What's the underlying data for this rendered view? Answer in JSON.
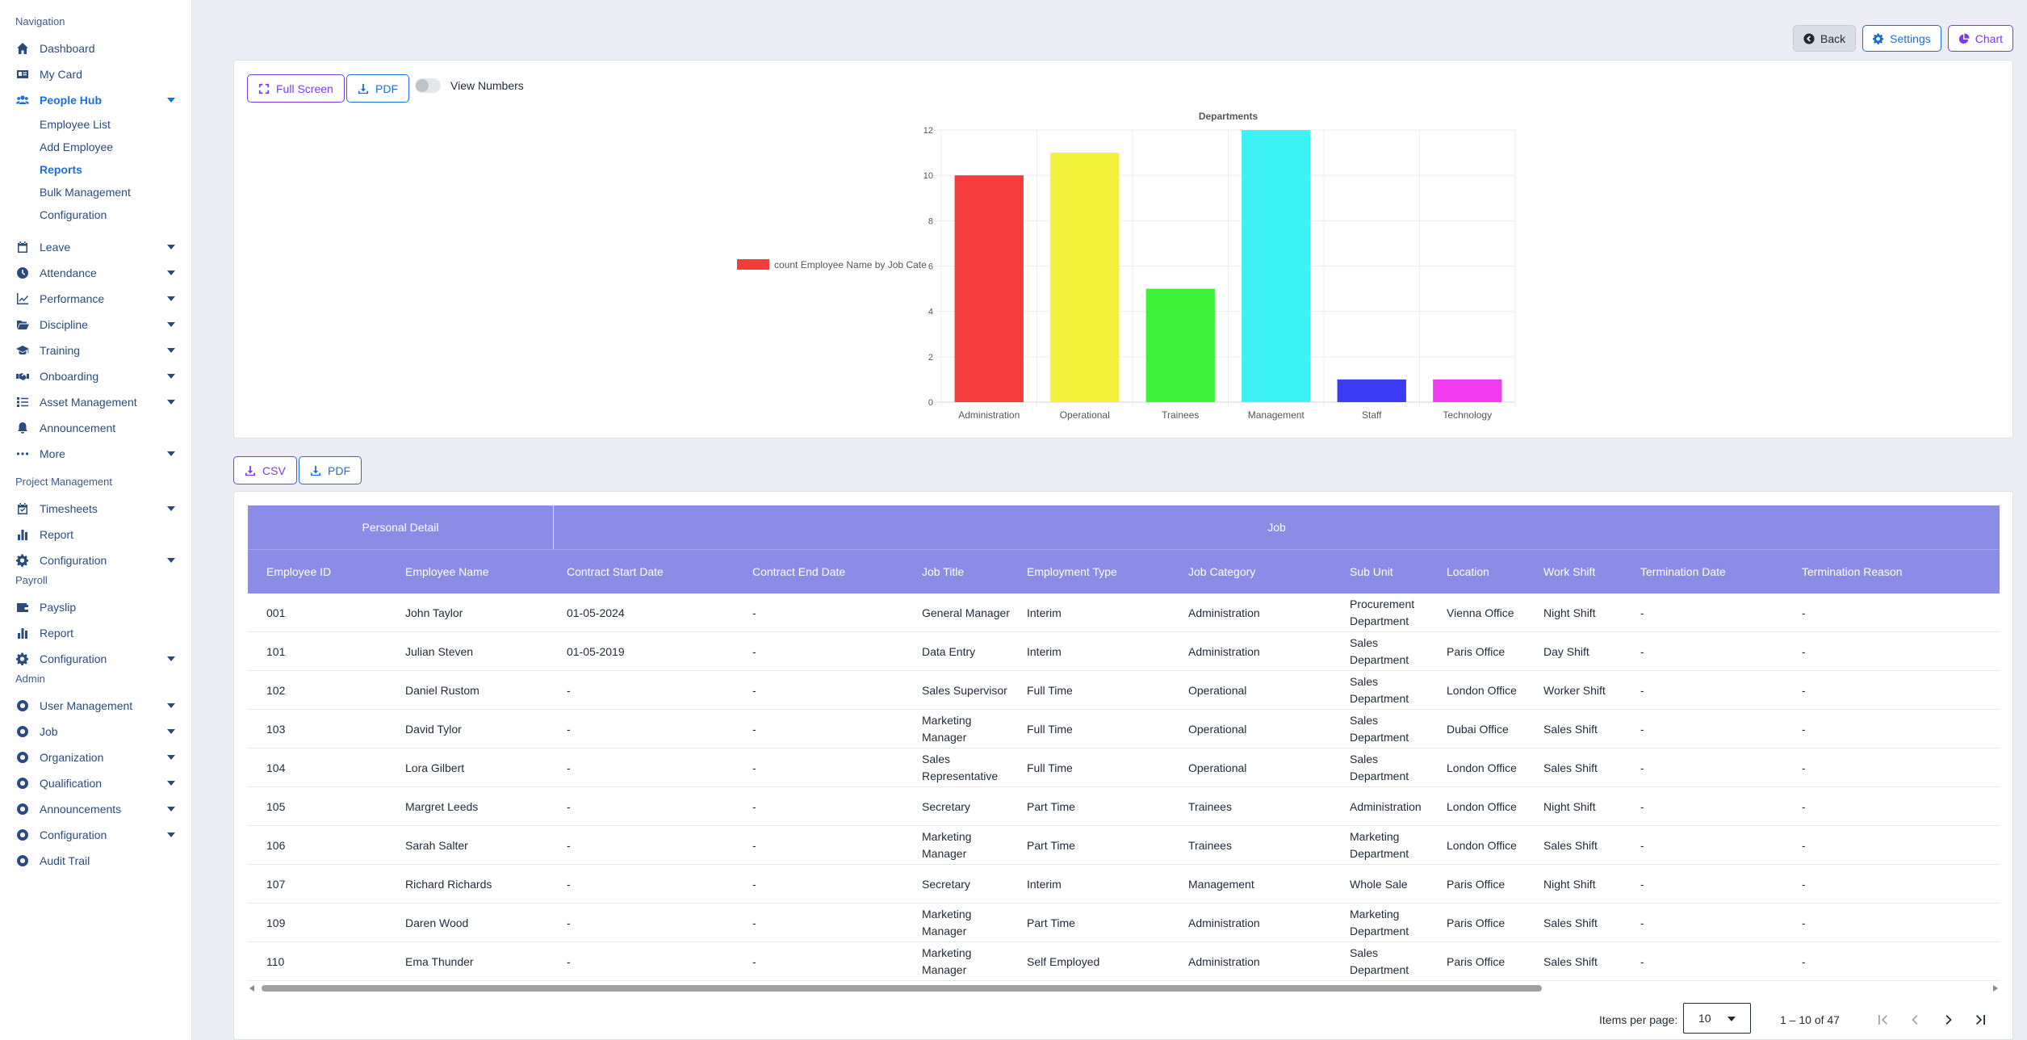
{
  "sidebar": {
    "sections": {
      "navigation": "Navigation",
      "project_management": "Project Management",
      "payroll": "Payroll",
      "admin": "Admin"
    },
    "items": {
      "dashboard": "Dashboard",
      "my_card": "My Card",
      "people_hub": "People Hub",
      "employee_list": "Employee List",
      "add_employee": "Add Employee",
      "reports": "Reports",
      "bulk_management": "Bulk Management",
      "configuration_people": "Configuration",
      "leave": "Leave",
      "attendance": "Attendance",
      "performance": "Performance",
      "discipline": "Discipline",
      "training": "Training",
      "onboarding": "Onboarding",
      "asset_management": "Asset Management",
      "announcement": "Announcement",
      "more": "More",
      "timesheets": "Timesheets",
      "report_pm": "Report",
      "configuration_pm": "Configuration",
      "payslip": "Payslip",
      "report_payroll": "Report",
      "configuration_payroll": "Configuration",
      "user_management": "User Management",
      "job": "Job",
      "organization": "Organization",
      "qualification": "Qualification",
      "announcements": "Announcements",
      "configuration_admin": "Configuration",
      "audit_trail": "Audit Trail"
    }
  },
  "top_actions": {
    "back": "Back",
    "settings": "Settings",
    "chart": "Chart"
  },
  "chart_panel": {
    "full_screen": "Full Screen",
    "pdf": "PDF",
    "view_numbers": "View Numbers"
  },
  "chart_data": {
    "type": "bar",
    "title": "Departments",
    "legend": "count Employee Name by Job Cate",
    "legend_position": "left",
    "categories": [
      "Administration",
      "Operational",
      "Trainees",
      "Management",
      "Staff",
      "Technology"
    ],
    "values": [
      10,
      11,
      5,
      12,
      1,
      1
    ],
    "colors": [
      "#f53c3c",
      "#f2f23c",
      "#3ef23c",
      "#3cf2f2",
      "#3c3cf2",
      "#f23cf2"
    ],
    "ylim": [
      0,
      12
    ],
    "yticks": [
      0,
      2,
      4,
      6,
      8,
      10,
      12
    ],
    "grid": true
  },
  "table_actions": {
    "csv": "CSV",
    "pdf": "PDF"
  },
  "table": {
    "groups": {
      "personal": "Personal Detail",
      "job": "Job"
    },
    "headers": [
      "Employee ID",
      "Employee Name",
      "Contract Start Date",
      "Contract End Date",
      "Job Title",
      "Employment Type",
      "Job Category",
      "Sub Unit",
      "Location",
      "Work Shift",
      "Termination Date",
      "Termination Reason"
    ],
    "rows": [
      [
        "001",
        "John Taylor",
        "01-05-2024",
        "-",
        "General Manager",
        "Interim",
        "Administration",
        "Procurement Department",
        "Vienna Office",
        "Night Shift",
        "-",
        "-"
      ],
      [
        "101",
        "Julian Steven",
        "01-05-2019",
        "-",
        "Data Entry",
        "Interim",
        "Administration",
        "Sales Department",
        "Paris Office",
        "Day Shift",
        "-",
        "-"
      ],
      [
        "102",
        "Daniel Rustom",
        "-",
        "-",
        "Sales Supervisor",
        "Full Time",
        "Operational",
        "Sales Department",
        "London Office",
        "Worker Shift",
        "-",
        "-"
      ],
      [
        "103",
        "David Tylor",
        "-",
        "-",
        "Marketing Manager",
        "Full Time",
        "Operational",
        "Sales Department",
        "Dubai Office",
        "Sales Shift",
        "-",
        "-"
      ],
      [
        "104",
        "Lora Gilbert",
        "-",
        "-",
        "Sales Representative",
        "Full Time",
        "Operational",
        "Sales Department",
        "London Office",
        "Sales Shift",
        "-",
        "-"
      ],
      [
        "105",
        "Margret Leeds",
        "-",
        "-",
        "Secretary",
        "Part Time",
        "Trainees",
        "Administration",
        "London Office",
        "Night Shift",
        "-",
        "-"
      ],
      [
        "106",
        "Sarah Salter",
        "-",
        "-",
        "Marketing Manager",
        "Part Time",
        "Trainees",
        "Marketing Department",
        "London Office",
        "Sales Shift",
        "-",
        "-"
      ],
      [
        "107",
        "Richard Richards",
        "-",
        "-",
        "Secretary",
        "Interim",
        "Management",
        "Whole Sale",
        "Paris Office",
        "Night Shift",
        "-",
        "-"
      ],
      [
        "109",
        "Daren Wood",
        "-",
        "-",
        "Marketing Manager",
        "Part Time",
        "Administration",
        "Marketing Department",
        "Paris Office",
        "Sales Shift",
        "-",
        "-"
      ],
      [
        "110",
        "Ema Thunder",
        "-",
        "-",
        "Marketing Manager",
        "Self Employed",
        "Administration",
        "Sales Department",
        "Paris Office",
        "Sales Shift",
        "-",
        "-"
      ]
    ]
  },
  "pagination": {
    "items_per_page_label": "Items per page:",
    "items_per_page": "10",
    "range": "1 – 10 of 47"
  }
}
